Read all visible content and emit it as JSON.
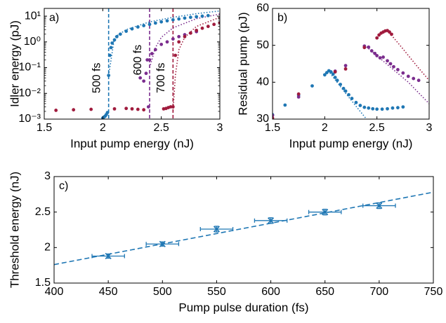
{
  "chart_data": [
    {
      "panel": "a)",
      "type": "scatter",
      "xlabel": "Input pump energy (nJ)",
      "ylabel": "Idler energy (pJ)",
      "xlim": [
        1.5,
        3
      ],
      "ylim": [
        0.001,
        20
      ],
      "yscale": "log",
      "xticks": [
        "1.5",
        "2",
        "2.5",
        "3"
      ],
      "yticks": [
        {
          "value": 10,
          "label": "10¹"
        },
        {
          "value": 1,
          "label": "10⁰"
        },
        {
          "value": 0.1,
          "label": "10⁻¹"
        },
        {
          "value": 0.01,
          "label": "10⁻²"
        },
        {
          "value": 0.001,
          "label": "10⁻³"
        }
      ],
      "grid": false,
      "annotations": [
        {
          "text": "500 fs",
          "x": 2.0,
          "y": 0.01
        },
        {
          "text": "600 fs",
          "x": 2.35,
          "y": 0.05
        },
        {
          "text": "700 fs",
          "x": 2.55,
          "y": 0.01
        }
      ],
      "vlines": [
        {
          "x": 2.05,
          "color": "#1f77b4"
        },
        {
          "x": 2.4,
          "color": "#7b2d8e"
        },
        {
          "x": 2.6,
          "color": "#a01b3d"
        }
      ],
      "series": [
        {
          "color": "#1f77b4",
          "x": [
            2.0,
            2.01,
            2.02,
            2.03,
            2.04,
            2.05,
            2.06,
            2.07,
            2.08,
            2.1,
            2.12,
            2.15,
            2.2,
            2.25,
            2.3,
            2.35,
            2.4,
            2.45,
            2.5,
            2.55,
            2.6,
            2.65,
            2.7,
            2.75,
            2.8,
            2.85,
            2.9
          ],
          "y": [
            0.0011,
            0.0012,
            0.0013,
            0.0015,
            0.0018,
            0.05,
            0.3,
            0.6,
            0.9,
            1.2,
            1.6,
            2.0,
            2.6,
            3.2,
            3.8,
            4.3,
            4.8,
            5.4,
            6.0,
            6.6,
            7.2,
            7.8,
            8.4,
            9.0,
            9.5,
            10.0,
            10.5
          ]
        },
        {
          "color": "#7b2d8e",
          "x": [
            2.32,
            2.35,
            2.37,
            2.38,
            2.39,
            2.4,
            2.42,
            2.45,
            2.5,
            2.55,
            2.6,
            2.65,
            2.7,
            2.75,
            2.8
          ],
          "y": [
            0.04,
            0.03,
            0.06,
            0.2,
            0.003,
            0.2,
            0.35,
            0.5,
            0.8,
            1.0,
            1.3,
            1.6,
            1.9,
            2.2,
            2.5
          ]
        },
        {
          "color": "#a01b3d",
          "x": [
            1.6,
            1.75,
            1.9,
            2.1,
            2.2,
            2.25,
            2.3,
            2.35,
            2.52,
            2.54,
            2.56,
            2.58,
            2.6,
            2.62,
            2.65,
            2.7,
            2.75,
            2.8,
            2.85,
            2.9,
            2.95,
            3.0
          ],
          "y": [
            0.0022,
            0.0023,
            0.0024,
            0.0025,
            0.0026,
            0.0025,
            0.0024,
            0.0023,
            0.0025,
            0.0026,
            0.0028,
            0.003,
            0.003,
            0.3,
            1.0,
            1.6,
            2.2,
            2.8,
            3.4,
            4.0,
            4.8,
            5.5
          ]
        }
      ],
      "fits": [
        {
          "color": "#1f77b4",
          "x": [
            2.05,
            2.1,
            2.2,
            2.4,
            2.6,
            2.8,
            3.0
          ],
          "y": [
            0.05,
            1.5,
            3.0,
            6.0,
            9.0,
            12.5,
            16.0
          ]
        },
        {
          "color": "#7b2d8e",
          "x": [
            2.4,
            2.45,
            2.5,
            2.6,
            2.8,
            3.0
          ],
          "y": [
            0.1,
            0.6,
            1.5,
            3.5,
            8.0,
            12.0
          ]
        },
        {
          "color": "#a01b3d",
          "x": [
            2.6,
            2.62,
            2.65,
            2.7,
            2.8,
            3.0
          ],
          "y": [
            0.002,
            0.05,
            0.5,
            1.5,
            4.0,
            9.0
          ]
        }
      ]
    },
    {
      "panel": "b)",
      "type": "scatter",
      "xlabel": "Input pump energy (nJ)",
      "ylabel": "Residual pump (pJ)",
      "xlim": [
        1.5,
        3
      ],
      "ylim": [
        30,
        60
      ],
      "xticks": [
        "1.5",
        "2",
        "2.5",
        "3"
      ],
      "yticks": [
        "30",
        "40",
        "50",
        "60"
      ],
      "grid": false,
      "series": [
        {
          "color": "#1f77b4",
          "x": [
            1.5,
            1.62,
            1.75,
            1.88,
            2.0,
            2.02,
            2.04,
            2.06,
            2.08,
            2.1,
            2.12,
            2.15,
            2.18,
            2.2,
            2.23,
            2.26,
            2.3,
            2.34,
            2.38,
            2.42,
            2.46,
            2.5,
            2.55,
            2.6,
            2.65,
            2.7,
            2.75
          ],
          "y": [
            31.2,
            33.8,
            36.5,
            39.0,
            42.0,
            42.6,
            43.1,
            42.8,
            42.2,
            41.3,
            40.5,
            39.4,
            38.3,
            37.6,
            36.6,
            35.6,
            34.5,
            33.7,
            33.2,
            33.0,
            32.8,
            32.7,
            32.7,
            32.8,
            33.0,
            33.1,
            33.3
          ]
        },
        {
          "color": "#7b2d8e",
          "x": [
            1.5,
            1.75,
            2.1,
            2.2,
            2.38,
            2.42,
            2.45,
            2.48,
            2.5,
            2.53,
            2.56,
            2.6,
            2.63,
            2.66,
            2.7,
            2.75,
            2.8,
            2.85,
            2.9
          ],
          "y": [
            31.0,
            36.0,
            43.0,
            44.5,
            49.8,
            49.5,
            48.5,
            47.8,
            47.2,
            46.6,
            46.8,
            45.8,
            45.0,
            44.2,
            43.4,
            42.5,
            41.6,
            41.0,
            40.5
          ]
        },
        {
          "color": "#a01b3d",
          "x": [
            1.5,
            1.75,
            2.1,
            2.2,
            2.38,
            2.5,
            2.52,
            2.54,
            2.56,
            2.58,
            2.6,
            2.62,
            2.64
          ],
          "y": [
            30.3,
            36.8,
            42.8,
            43.6,
            49.4,
            52.0,
            52.8,
            53.3,
            53.6,
            53.9,
            54.0,
            53.6,
            53.0
          ]
        }
      ],
      "fits": [
        {
          "color": "#1f77b4",
          "x": [
            2.05,
            2.2,
            2.3,
            2.4
          ],
          "y": [
            42.5,
            37.0,
            33.5,
            30.0
          ]
        },
        {
          "color": "#7b2d8e",
          "x": [
            2.4,
            2.6,
            2.8,
            3.0
          ],
          "y": [
            49.6,
            44.8,
            40.0,
            34.2
          ]
        },
        {
          "color": "#a01b3d",
          "x": [
            2.62,
            2.75,
            2.9,
            3.0
          ],
          "y": [
            53.4,
            49.0,
            43.8,
            40.5
          ]
        }
      ]
    },
    {
      "panel": "c)",
      "type": "scatter",
      "xlabel": "Pump pulse duration (fs)",
      "ylabel": "Threshold energy (nJ)",
      "xlim": [
        400,
        750
      ],
      "ylim": [
        1.5,
        3
      ],
      "xticks": [
        "400",
        "450",
        "500",
        "550",
        "600",
        "650",
        "700",
        "750"
      ],
      "yticks": [
        "1.5",
        "2",
        "2.5",
        "3"
      ],
      "grid": false,
      "series": [
        {
          "color": "#1f77b4",
          "marker": "x",
          "x": [
            450,
            500,
            550,
            600,
            650,
            700
          ],
          "y": [
            1.88,
            2.05,
            2.26,
            2.38,
            2.5,
            2.59
          ],
          "xerr": [
            15,
            15,
            15,
            15,
            15,
            15
          ],
          "yerr": [
            0.03,
            0.03,
            0.04,
            0.04,
            0.04,
            0.04
          ]
        }
      ],
      "fit": {
        "color": "#1f77b4",
        "x": [
          400,
          750
        ],
        "y": [
          1.76,
          2.78
        ]
      }
    }
  ]
}
